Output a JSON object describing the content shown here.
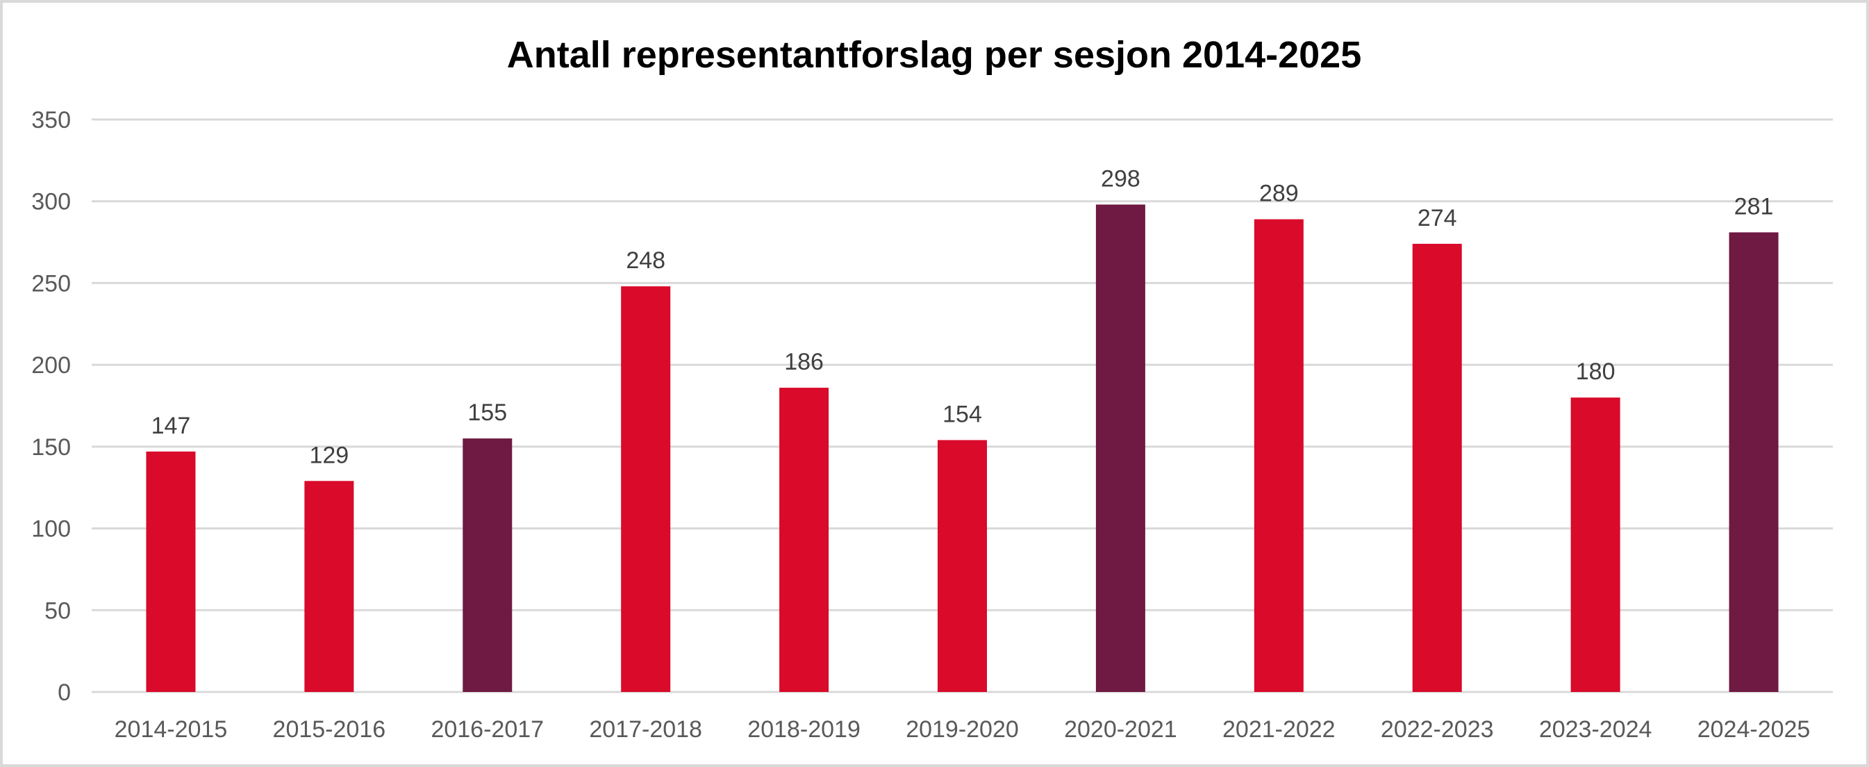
{
  "chart_data": {
    "type": "bar",
    "title": "Antall representantforslag per sesjon 2014-2025",
    "xlabel": "",
    "ylabel": "",
    "categories": [
      "2014-2015",
      "2015-2016",
      "2016-2017",
      "2017-2018",
      "2018-2019",
      "2019-2020",
      "2020-2021",
      "2021-2022",
      "2022-2023",
      "2023-2024",
      "2024-2025"
    ],
    "values": [
      147,
      129,
      155,
      248,
      186,
      154,
      298,
      289,
      274,
      180,
      281
    ],
    "highlight": [
      false,
      false,
      true,
      false,
      false,
      false,
      true,
      false,
      false,
      false,
      true
    ],
    "colors": {
      "default": "#D90A2A",
      "highlight": "#6E1A42"
    },
    "ylim": [
      0,
      350
    ],
    "yticks": [
      0,
      50,
      100,
      150,
      200,
      250,
      300,
      350
    ],
    "grid": true,
    "legend": "none",
    "data_labels": true
  }
}
